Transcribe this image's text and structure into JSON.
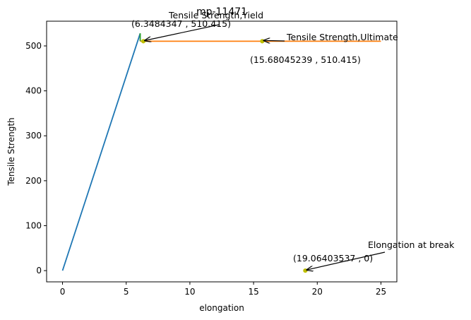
{
  "chart_data": {
    "type": "line",
    "title": "mp-11471",
    "xlabel": "elongation",
    "ylabel": "Tensile Strength",
    "xlim": [
      -1.25,
      26.25
    ],
    "ylim": [
      -25,
      555
    ],
    "xticks": [
      0,
      5,
      10,
      15,
      20,
      25
    ],
    "yticks": [
      0,
      100,
      200,
      300,
      400,
      500
    ],
    "grid": false,
    "series": [
      {
        "color": "#1f77b4",
        "x": [
          0,
          6.1
        ],
        "y": [
          0,
          528
        ]
      },
      {
        "color": "#ff7f0e",
        "x": [
          6.1,
          25.0
        ],
        "y": [
          510.415,
          510.415
        ]
      },
      {
        "color": "#2ca02c",
        "x": [
          6.1,
          6.1
        ],
        "y": [
          510.415,
          528
        ]
      }
    ],
    "points": [
      {
        "x": 6.3484347,
        "y": 510.415,
        "color": "#bfbf00"
      },
      {
        "x": 15.68045239,
        "y": 510.415,
        "color": "#bfbf00"
      },
      {
        "x": 19.06403537,
        "y": 0,
        "color": "#bfbf00"
      }
    ],
    "annotations": [
      {
        "label": "Tensile Strength,Yield",
        "coord_text": "(6.3484347 , 510.415)",
        "x": 6.3484347,
        "y": 510.415
      },
      {
        "label": "Tensile Strength,Ultimate",
        "coord_text": "(15.68045239 , 510.415)",
        "x": 15.68045239,
        "y": 510.415
      },
      {
        "label": "Elongation at break",
        "coord_text": "(19.06403537 , 0)",
        "x": 19.06403537,
        "y": 0
      }
    ]
  }
}
